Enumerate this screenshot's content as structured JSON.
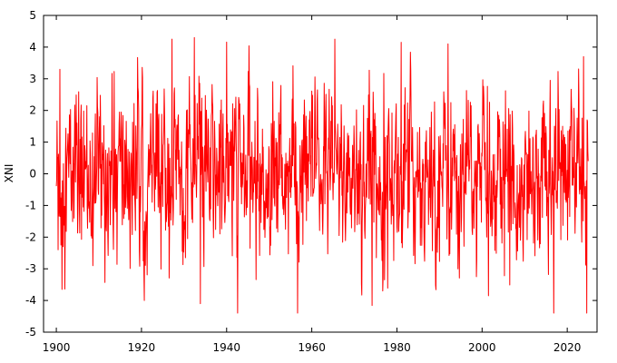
{
  "chart_data": {
    "type": "line",
    "title": "",
    "xlabel": "",
    "ylabel": "XNI",
    "xlim": [
      1897,
      2027
    ],
    "ylim": [
      -5,
      5
    ],
    "xticks": [
      1900,
      1920,
      1940,
      1960,
      1980,
      2000,
      2020
    ],
    "yticks": [
      -5,
      -4,
      -3,
      -2,
      -1,
      0,
      1,
      2,
      3,
      4,
      5
    ],
    "grid": false,
    "legend": "none",
    "series": [
      {
        "color": "#ff0000",
        "sampling": "monthly",
        "start_year": 1900.0,
        "x_step": 0.0833333,
        "peaks_note": "Monthly values between about -4.4 and 4.3",
        "values": []
      }
    ]
  }
}
